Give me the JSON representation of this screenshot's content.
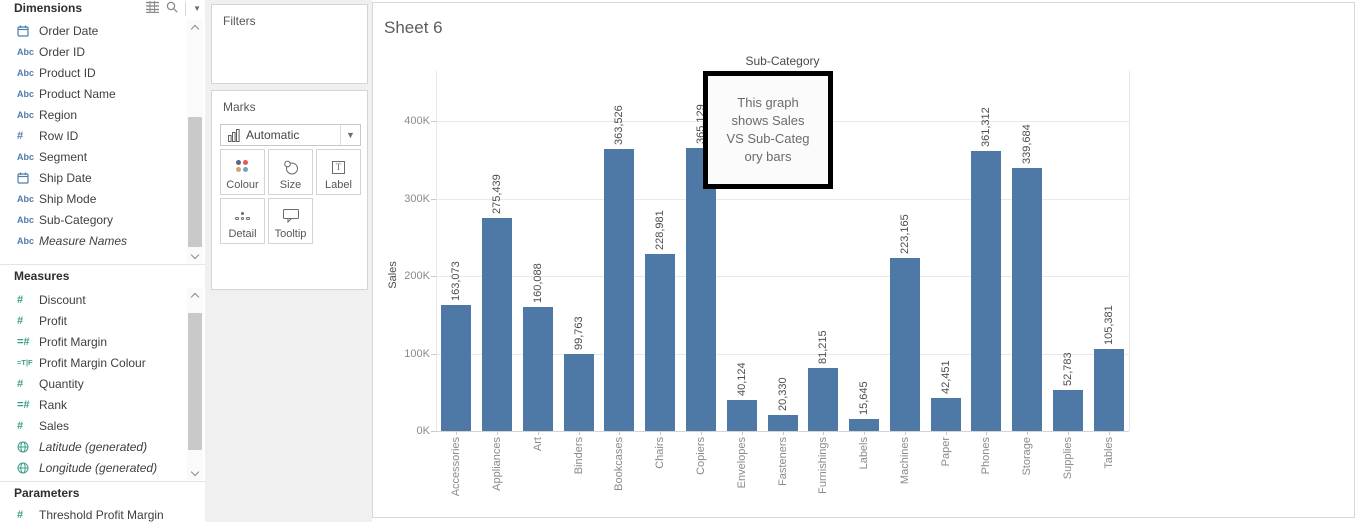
{
  "data_pane": {
    "dimensions": {
      "title": "Dimensions",
      "items": [
        {
          "icon": "calendar",
          "label": "Order Date"
        },
        {
          "icon": "abc",
          "label": "Order ID"
        },
        {
          "icon": "abc",
          "label": "Product ID"
        },
        {
          "icon": "abc",
          "label": "Product Name"
        },
        {
          "icon": "abc",
          "label": "Region"
        },
        {
          "icon": "number",
          "label": "Row ID"
        },
        {
          "icon": "abc",
          "label": "Segment"
        },
        {
          "icon": "calendar",
          "label": "Ship Date"
        },
        {
          "icon": "abc",
          "label": "Ship Mode"
        },
        {
          "icon": "abc",
          "label": "Sub-Category"
        },
        {
          "icon": "abc",
          "label": "Measure Names",
          "italic": true
        }
      ]
    },
    "measures": {
      "title": "Measures",
      "items": [
        {
          "icon": "number",
          "label": "Discount"
        },
        {
          "icon": "number",
          "label": "Profit"
        },
        {
          "icon": "calc-number",
          "label": "Profit Margin"
        },
        {
          "icon": "calc-boolean",
          "label": "Profit Margin Colour"
        },
        {
          "icon": "number",
          "label": "Quantity"
        },
        {
          "icon": "calc-number",
          "label": "Rank"
        },
        {
          "icon": "number",
          "label": "Sales"
        },
        {
          "icon": "globe",
          "label": "Latitude (generated)",
          "italic": true
        },
        {
          "icon": "globe",
          "label": "Longitude (generated)",
          "italic": true
        }
      ]
    },
    "parameters": {
      "title": "Parameters",
      "items": [
        {
          "icon": "number",
          "label": "Threshold Profit Margin"
        }
      ]
    }
  },
  "shelves": {
    "filters": {
      "title": "Filters"
    },
    "marks": {
      "title": "Marks",
      "mark_type": "Automatic",
      "buttons": [
        {
          "icon": "colour",
          "label": "Colour"
        },
        {
          "icon": "size",
          "label": "Size"
        },
        {
          "icon": "label",
          "label": "Label"
        },
        {
          "icon": "detail",
          "label": "Detail"
        },
        {
          "icon": "tooltip",
          "label": "Tooltip"
        }
      ]
    }
  },
  "sheet": {
    "annotation": {
      "lines": [
        "This graph",
        "shows Sales",
        "VS Sub-Categ",
        "ory bars"
      ]
    }
  },
  "chart_data": {
    "type": "bar",
    "title": "Sheet 6",
    "top_axis_label": "Sub-Category",
    "xlabel": "Sub-Category",
    "ylabel": "Sales",
    "categories": [
      "Accessories",
      "Appliances",
      "Art",
      "Binders",
      "Bookcases",
      "Chairs",
      "Copiers",
      "Envelopes",
      "Fasteners",
      "Furnishings",
      "Labels",
      "Machines",
      "Paper",
      "Phones",
      "Storage",
      "Supplies",
      "Tables"
    ],
    "values": [
      163073,
      275439,
      160088,
      99763,
      363526,
      228981,
      365129,
      40124,
      20330,
      81215,
      15645,
      223165,
      42451,
      361312,
      339684,
      52783,
      105381
    ],
    "bar_labels": [
      "163,073",
      "275,439",
      "160,088",
      "99,763",
      "363,526",
      "228,981",
      "365,129",
      "40,124",
      "20,330",
      "81,215",
      "15,645",
      "223,165",
      "42,451",
      "361,312",
      "339,684",
      "52,783",
      "105,381"
    ],
    "y_ticks": [
      {
        "value": 0,
        "label": "0K"
      },
      {
        "value": 100000,
        "label": "100K"
      },
      {
        "value": 200000,
        "label": "200K"
      },
      {
        "value": 300000,
        "label": "300K"
      },
      {
        "value": 400000,
        "label": "400K"
      }
    ],
    "ylim": [
      0,
      400000
    ],
    "grid": "horizontal",
    "legend": "none",
    "bar_color": "#4e79a7"
  },
  "colors": {
    "bar": "#4e79a7",
    "dimension_icon": "#4f7cab",
    "measure_icon": "#3a9e8c",
    "shelf_bg": "#f0f0f0",
    "colour_dots": [
      "#55687d",
      "#e0595d",
      "#d8a06c",
      "#6fa3c7"
    ]
  }
}
